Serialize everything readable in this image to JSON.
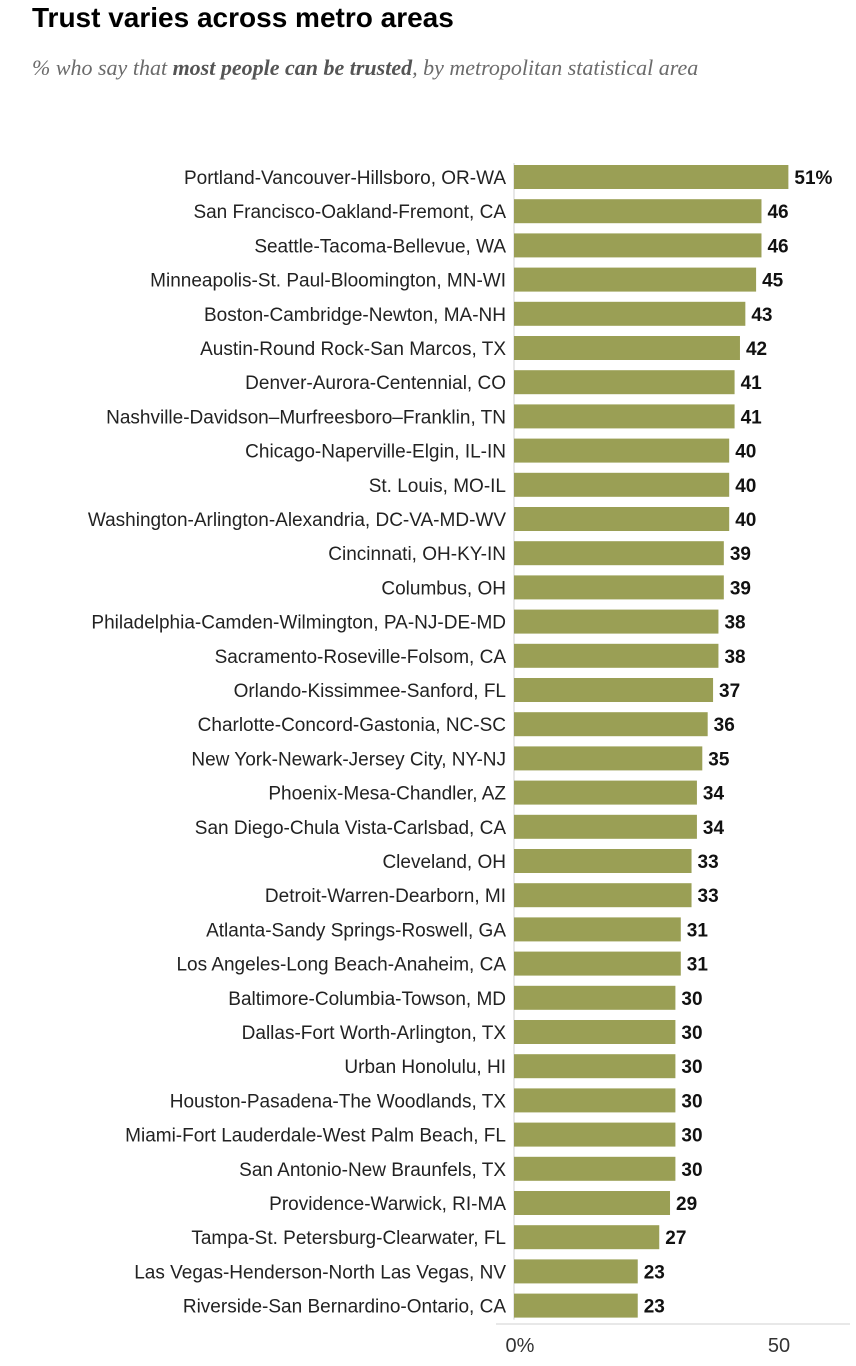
{
  "chart_data": {
    "type": "bar",
    "orientation": "horizontal",
    "title": "Trust varies across metro areas",
    "subtitle_pre": "% who say that ",
    "subtitle_bold": "most people can be trusted",
    "subtitle_post": ", by metropolitan statistical area",
    "categories": [
      "Portland-Vancouver-Hillsboro, OR-WA",
      "San Francisco-Oakland-Fremont, CA",
      "Seattle-Tacoma-Bellevue, WA",
      "Minneapolis-St. Paul-Bloomington, MN-WI",
      "Boston-Cambridge-Newton, MA-NH",
      "Austin-Round Rock-San Marcos, TX",
      "Denver-Aurora-Centennial, CO",
      "Nashville-Davidson–Murfreesboro–Franklin, TN",
      "Chicago-Naperville-Elgin, IL-IN",
      "St. Louis, MO-IL",
      "Washington-Arlington-Alexandria, DC-VA-MD-WV",
      "Cincinnati, OH-KY-IN",
      "Columbus, OH",
      "Philadelphia-Camden-Wilmington, PA-NJ-DE-MD",
      "Sacramento-Roseville-Folsom, CA",
      "Orlando-Kissimmee-Sanford, FL",
      "Charlotte-Concord-Gastonia, NC-SC",
      "New York-Newark-Jersey City, NY-NJ",
      "Phoenix-Mesa-Chandler, AZ",
      "San Diego-Chula Vista-Carlsbad, CA",
      "Cleveland, OH",
      "Detroit-Warren-Dearborn, MI",
      "Atlanta-Sandy Springs-Roswell, GA",
      "Los Angeles-Long Beach-Anaheim, CA",
      "Baltimore-Columbia-Towson, MD",
      "Dallas-Fort Worth-Arlington, TX",
      "Urban Honolulu, HI",
      "Houston-Pasadena-The Woodlands, TX",
      "Miami-Fort Lauderdale-West Palm Beach, FL",
      "San Antonio-New Braunfels, TX",
      "Providence-Warwick, RI-MA",
      "Tampa-St. Petersburg-Clearwater, FL",
      "Las Vegas-Henderson-North Las Vegas, NV",
      "Riverside-San Bernardino-Ontario, CA"
    ],
    "values": [
      51,
      46,
      46,
      45,
      43,
      42,
      41,
      41,
      40,
      40,
      40,
      39,
      39,
      38,
      38,
      37,
      36,
      35,
      34,
      34,
      33,
      33,
      31,
      31,
      30,
      30,
      30,
      30,
      30,
      30,
      29,
      27,
      23,
      23
    ],
    "value_labels": [
      "51%",
      "46",
      "46",
      "45",
      "43",
      "42",
      "41",
      "41",
      "40",
      "40",
      "40",
      "39",
      "39",
      "38",
      "38",
      "37",
      "36",
      "35",
      "34",
      "34",
      "33",
      "33",
      "31",
      "31",
      "30",
      "30",
      "30",
      "30",
      "30",
      "30",
      "29",
      "27",
      "23",
      "23"
    ],
    "x_ticks": [
      0,
      50
    ],
    "x_tick_labels": [
      "0%",
      "50"
    ],
    "xlim": [
      0,
      51
    ],
    "bar_color": "#9a9f55",
    "grid": false,
    "legend": "none"
  }
}
